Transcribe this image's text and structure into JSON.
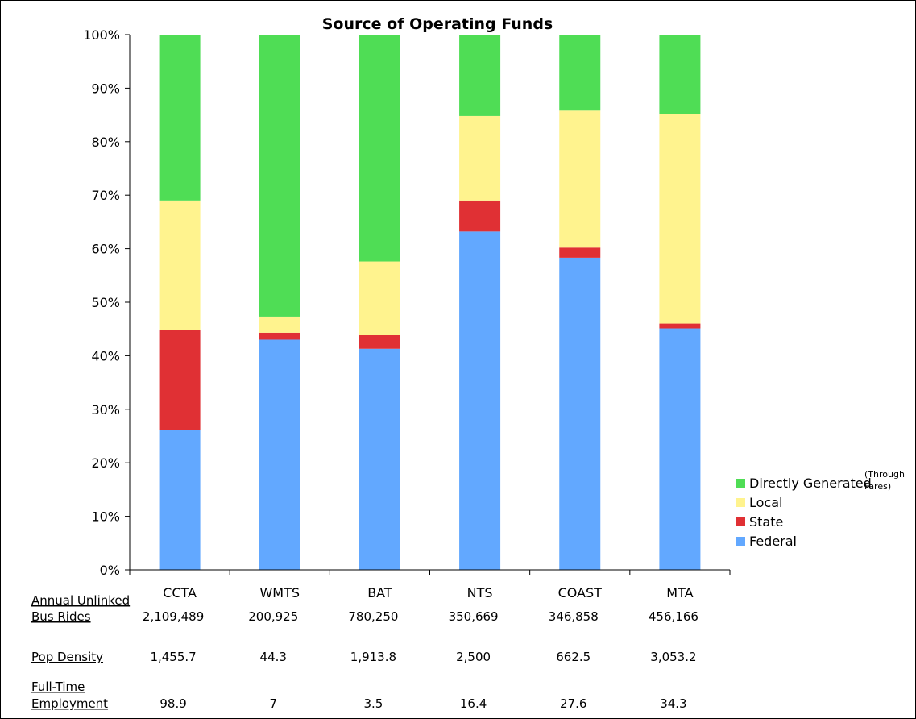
{
  "chart_data": {
    "type": "bar",
    "stacked": true,
    "percent": true,
    "title": "Source of Operating Funds",
    "categories": [
      "CCTA",
      "WMTS",
      "BAT",
      "NTS",
      "COAST",
      "MTA"
    ],
    "ylim": [
      0,
      100
    ],
    "yticks": [
      "0%",
      "10%",
      "20%",
      "30%",
      "40%",
      "50%",
      "60%",
      "70%",
      "80%",
      "90%",
      "100%"
    ],
    "series": [
      {
        "name": "Federal",
        "color": "#62a8ff",
        "values": [
          26.2,
          43.0,
          41.3,
          63.2,
          58.3,
          45.1
        ]
      },
      {
        "name": "State",
        "color": "#e03034",
        "values": [
          18.6,
          1.3,
          2.6,
          5.8,
          1.9,
          0.9
        ]
      },
      {
        "name": "Local",
        "color": "#fff38e",
        "values": [
          24.2,
          3.0,
          13.7,
          15.8,
          25.6,
          39.1
        ]
      },
      {
        "name": "Directly Generated",
        "color": "#4fdd55",
        "values": [
          31.0,
          52.7,
          42.4,
          15.2,
          14.2,
          14.9
        ]
      }
    ],
    "legend": {
      "position": "right-bottom",
      "entries": [
        "Directly Generated",
        "Local",
        "State",
        "Federal"
      ],
      "note_line1": "(Through",
      "note_line2": "Fares)"
    },
    "grid": false
  },
  "table": {
    "rows": [
      {
        "label_line1": "Annual Unlinked",
        "label_line2": "Bus Rides",
        "values": [
          "2,109,489",
          "200,925",
          "780,250",
          "350,669",
          "346,858",
          "456,166"
        ]
      },
      {
        "label_line1": "",
        "label_line2": "Pop Density",
        "values": [
          "1,455.7",
          "44.3",
          "1,913.8",
          "2,500",
          "662.5",
          "3,053.2"
        ]
      },
      {
        "label_line1": "Full-Time",
        "label_line2": "Employment",
        "values": [
          "98.9",
          "7",
          "3.5",
          "16.4",
          "27.6",
          "34.3"
        ]
      }
    ]
  }
}
